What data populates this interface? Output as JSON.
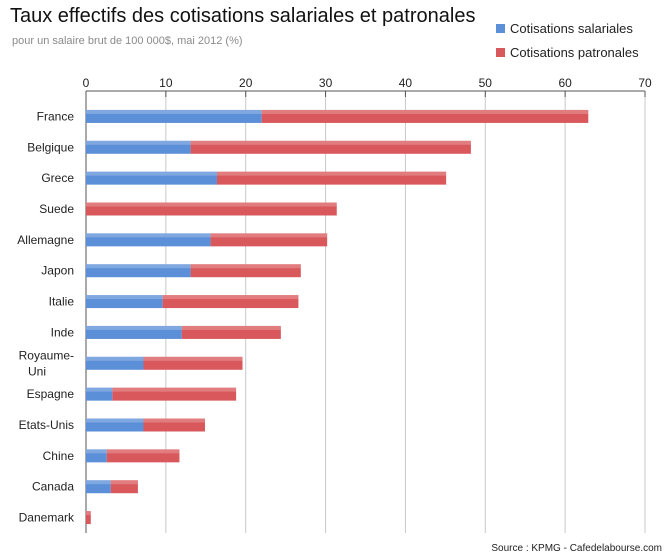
{
  "colors": {
    "salariales": "#5b8fd8",
    "patronales": "#d9585c",
    "grid": "#c8c8c8",
    "axis": "#555555"
  },
  "chart_data": {
    "type": "bar",
    "orientation": "horizontal",
    "stacked": true,
    "title": "Taux effectifs des cotisations salariales et patronales",
    "subtitle": "pour un salaire brut de 100 000$, mai 2012 (%)",
    "categories": [
      "France",
      "Belgique",
      "Grece",
      "Suede",
      "Allemagne",
      "Japon",
      "Italie",
      "Inde",
      "Royaume-Uni",
      "Espagne",
      "Etats-Unis",
      "Chine",
      "Canada",
      "Danemark"
    ],
    "category_display": [
      [
        "France"
      ],
      [
        "Belgique"
      ],
      [
        "Grece"
      ],
      [
        "Suede"
      ],
      [
        "Allemagne"
      ],
      [
        "Japon"
      ],
      [
        "Italie"
      ],
      [
        "Inde"
      ],
      [
        "Royaume-",
        "Uni"
      ],
      [
        "Espagne"
      ],
      [
        "Etats-Unis"
      ],
      [
        "Chine"
      ],
      [
        "Canada"
      ],
      [
        "Danemark"
      ]
    ],
    "series": [
      {
        "name": "Cotisations salariales",
        "color_key": "salariales",
        "values": [
          22.0,
          13.1,
          16.4,
          0,
          15.6,
          13.1,
          9.6,
          12.0,
          7.2,
          3.3,
          7.2,
          2.6,
          3.1,
          0
        ]
      },
      {
        "name": "Cotisations patronales",
        "color_key": "patronales",
        "values": [
          40.9,
          35.1,
          28.7,
          31.4,
          14.6,
          13.8,
          17.0,
          12.4,
          12.4,
          15.5,
          7.7,
          9.1,
          3.4,
          0.6
        ]
      }
    ],
    "xlim": [
      0,
      70
    ],
    "xticks": [
      0,
      10,
      20,
      30,
      40,
      50,
      60,
      70
    ],
    "grid": true,
    "legend_position": "top-right"
  },
  "source": "Source : KPMG  -  Cafedelabourse.com"
}
